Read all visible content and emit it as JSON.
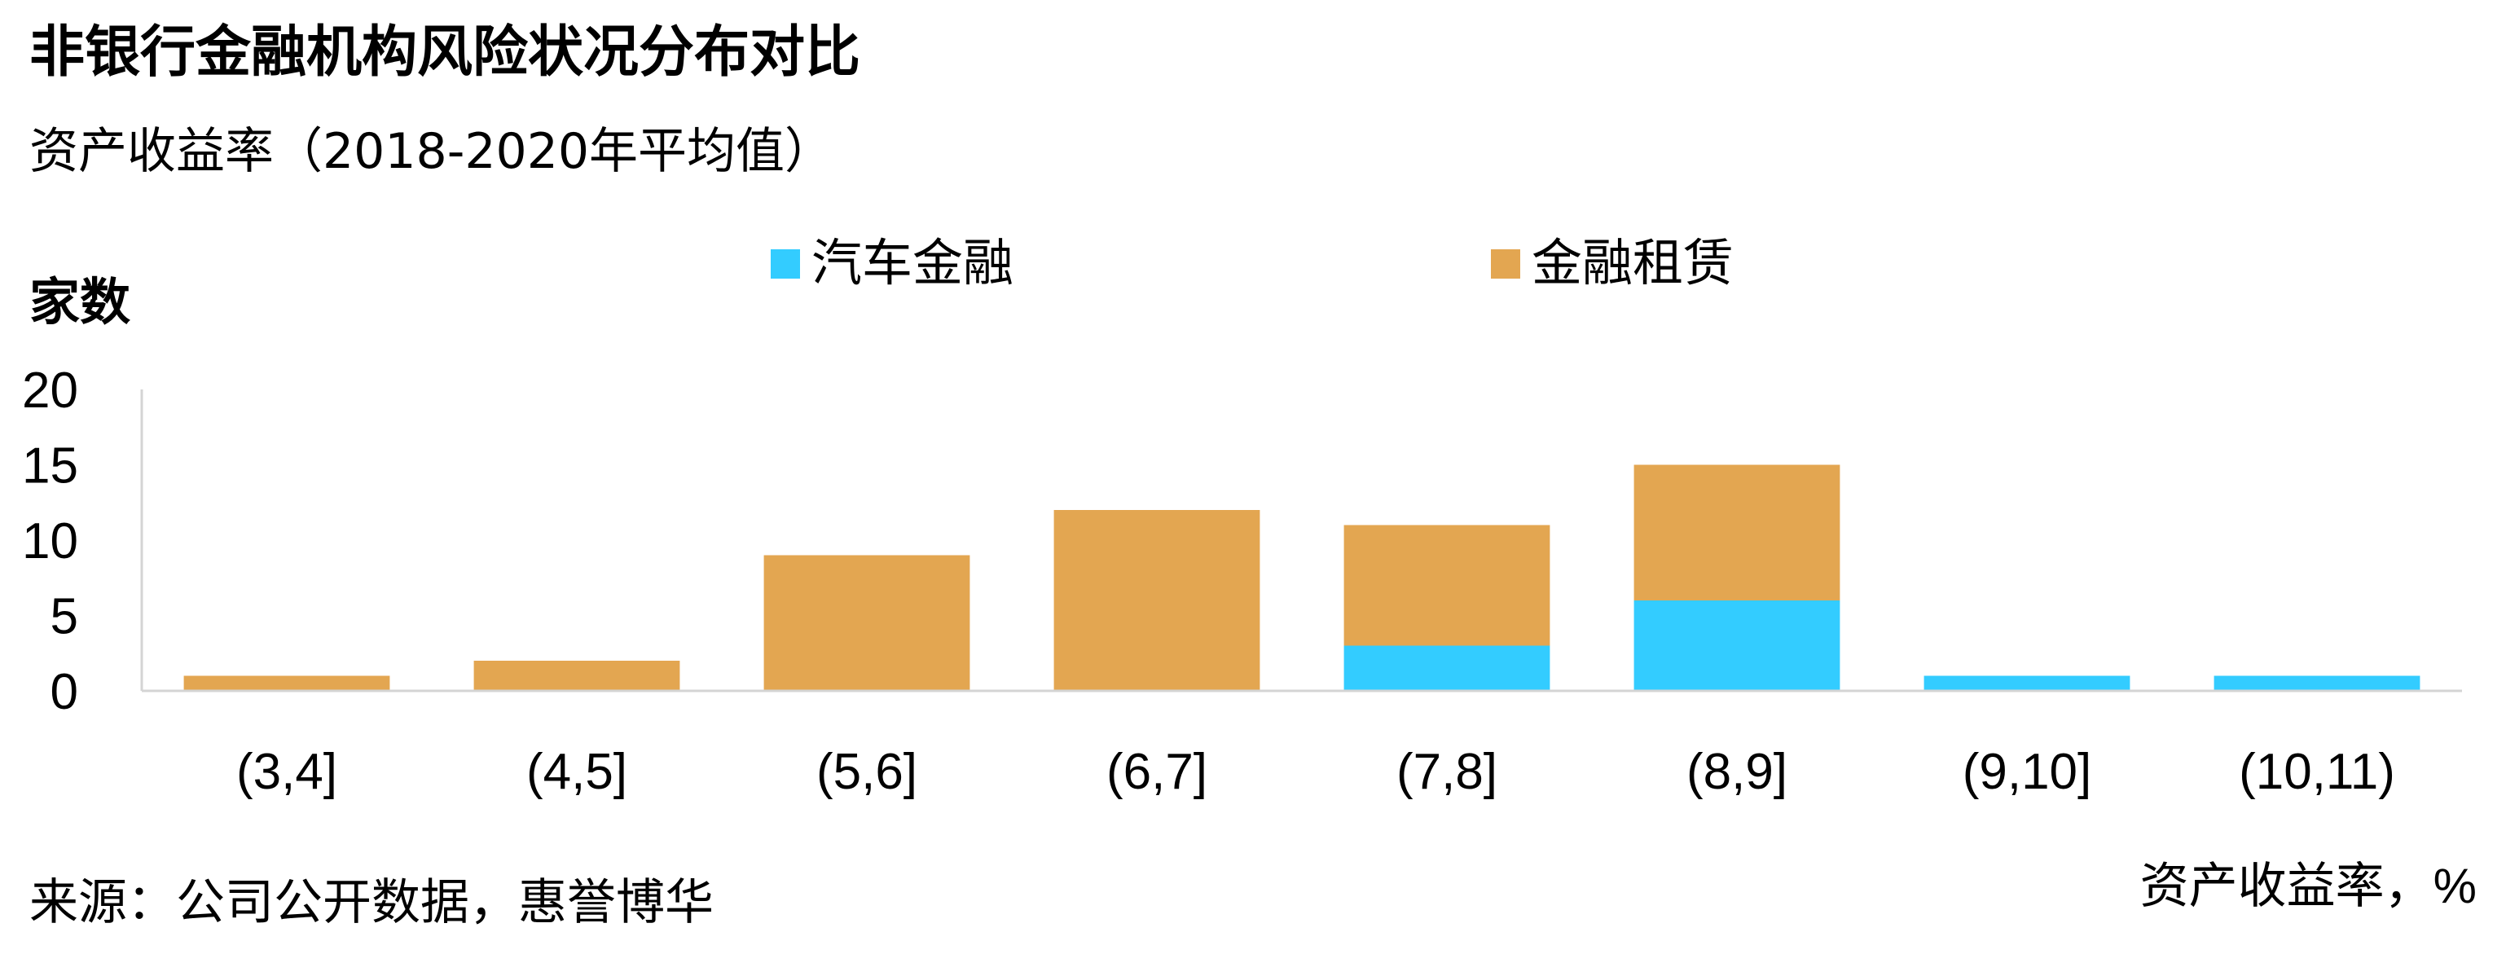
{
  "title": "非银行金融机构风险状况分布对比",
  "subtitle": "资产收益率（2018-2020年平均值）",
  "source": "来源：公司公开数据，惠誉博华",
  "chart_data": {
    "type": "bar",
    "stacked": true,
    "categories": [
      "(3,4]",
      "(4,5]",
      "(5,6]",
      "(6,7]",
      "(7,8]",
      "(8,9]",
      "(9,10]",
      "(10,11)"
    ],
    "series": [
      {
        "name": "汽车金融",
        "values": [
          0,
          0,
          0,
          0,
          3,
          6,
          1,
          1
        ],
        "color": "#33CCFF"
      },
      {
        "name": "金融租赁",
        "values": [
          1,
          2,
          9,
          12,
          8,
          9,
          0,
          0
        ],
        "color": "#E3A651"
      }
    ],
    "ylabel": "家数",
    "xlabel": "资产收益率，%",
    "ylim": [
      0,
      20
    ],
    "yticks": [
      0,
      5,
      10,
      15,
      20
    ],
    "grid": false,
    "legend_position": "top"
  }
}
